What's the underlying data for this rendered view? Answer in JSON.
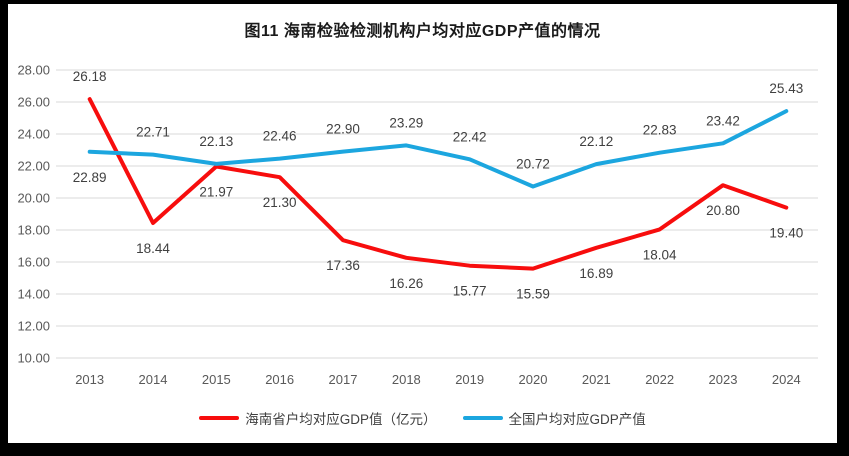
{
  "title": "图11 海南检验检测机构户均对应GDP产值的情况",
  "colors": {
    "frame": "#000000",
    "canvas_bg": "#ffffff",
    "gridline": "#d9d9d9",
    "tick_text": "#595959",
    "data_label_text": "#404040",
    "series_hainan": "#f70d0d",
    "series_national": "#1ca6df"
  },
  "chart_data": {
    "type": "line",
    "title": "图11 海南检验检测机构户均对应GDP产值的情况",
    "categories": [
      "2013",
      "2014",
      "2015",
      "2016",
      "2017",
      "2018",
      "2019",
      "2020",
      "2021",
      "2022",
      "2023",
      "2024"
    ],
    "series": [
      {
        "name": "海南省户均对应GDP值（亿元）",
        "color": "#f70d0d",
        "values": [
          26.18,
          18.44,
          21.97,
          21.3,
          17.36,
          16.26,
          15.77,
          15.59,
          16.89,
          18.04,
          20.8,
          19.4
        ],
        "label_position": "below",
        "first_label_position": "above"
      },
      {
        "name": "全国户均对应GDP产值",
        "color": "#1ca6df",
        "values": [
          22.89,
          22.71,
          22.13,
          22.46,
          22.9,
          23.29,
          22.42,
          20.72,
          22.12,
          22.83,
          23.42,
          25.43
        ],
        "label_position": "above",
        "first_label_position": "below"
      }
    ],
    "ylim": [
      10,
      28
    ],
    "ytick_step": 2,
    "ytick_labels": [
      "28.00",
      "26.00",
      "24.00",
      "22.00",
      "20.00",
      "18.00",
      "16.00",
      "14.00",
      "12.00",
      "10.00"
    ],
    "xlabel": "",
    "ylabel": "",
    "grid": true,
    "legend_position": "bottom",
    "data_labels_decimals": 2
  }
}
